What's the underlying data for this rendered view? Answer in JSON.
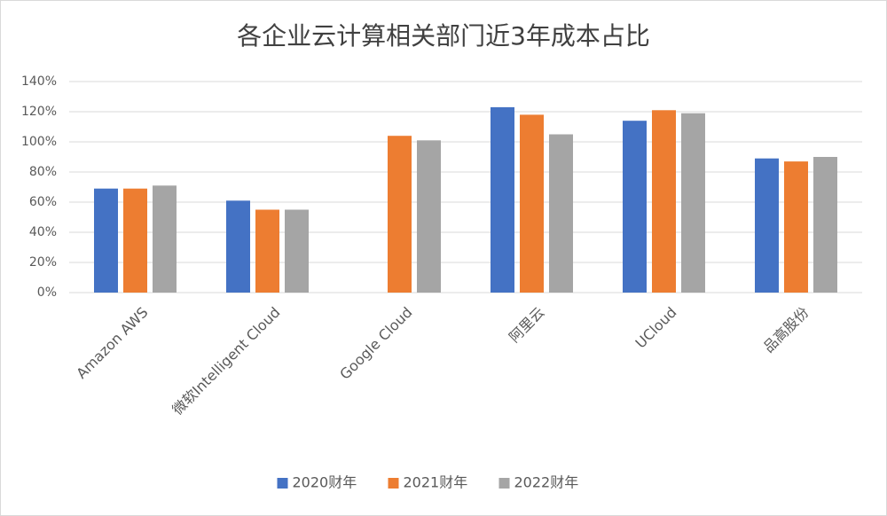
{
  "chart_data": {
    "type": "bar",
    "title": "各企业云计算相关部门近3年成本占比",
    "categories": [
      "Amazon AWS",
      "微软Intelligent Cloud",
      "Google Cloud",
      "阿里云",
      "UCloud",
      "品高股份"
    ],
    "series": [
      {
        "name": "2020财年",
        "color": "#4472c4",
        "values": [
          69,
          61,
          null,
          123,
          114,
          89
        ]
      },
      {
        "name": "2021财年",
        "color": "#ed7d31",
        "values": [
          69,
          55,
          104,
          118,
          121,
          87
        ]
      },
      {
        "name": "2022财年",
        "color": "#a5a5a5",
        "values": [
          71,
          55,
          101,
          105,
          119,
          90
        ]
      }
    ],
    "ylim": [
      0,
      140
    ],
    "yticks": [
      {
        "value": 0,
        "label": "0%"
      },
      {
        "value": 20,
        "label": "20%"
      },
      {
        "value": 40,
        "label": "40%"
      },
      {
        "value": 60,
        "label": "60%"
      },
      {
        "value": 80,
        "label": "80%"
      },
      {
        "value": 100,
        "label": "100%"
      },
      {
        "value": 120,
        "label": "120%"
      },
      {
        "value": 140,
        "label": "140%"
      }
    ],
    "grid": true,
    "legend": "bottom"
  }
}
